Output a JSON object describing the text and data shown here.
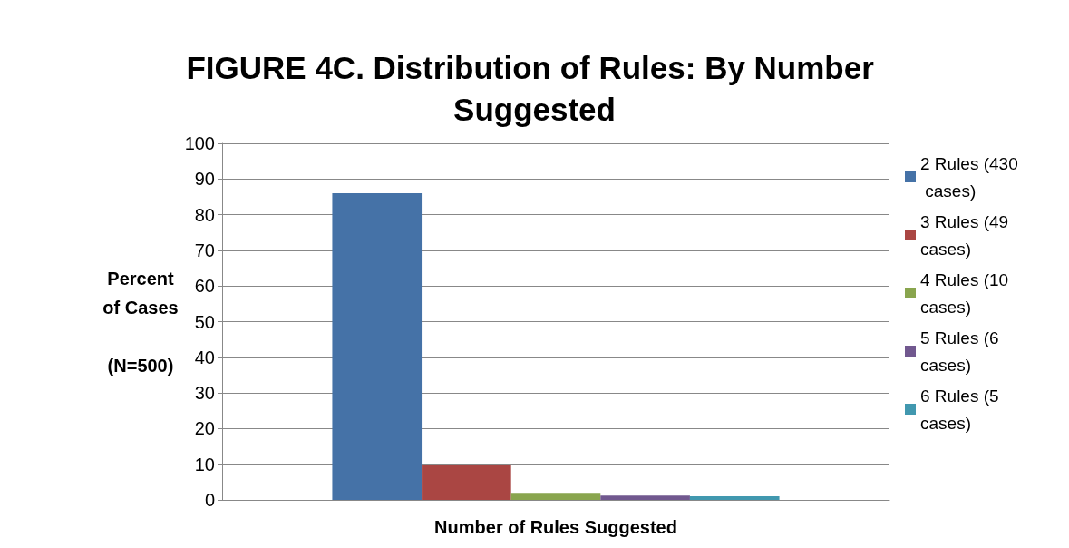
{
  "chart_data": {
    "type": "bar",
    "title": "FIGURE 4C. Distribution of Rules: By Number Suggested",
    "xlabel": "Number of Rules Suggested",
    "ylabel": "Percent\nof Cases\n\n(N=500)",
    "categories": [
      null
    ],
    "series": [
      {
        "name": "2 Rules (430 cases)",
        "color": "#4572a7",
        "values": [
          86
        ]
      },
      {
        "name": "3 Rules (49 cases)",
        "color": "#aa4643",
        "values": [
          9.8
        ]
      },
      {
        "name": "4 Rules (10 cases)",
        "color": "#89a54e",
        "values": [
          2
        ]
      },
      {
        "name": "5 Rules (6 cases)",
        "color": "#71588f",
        "values": [
          1.2
        ]
      },
      {
        "name": "6 Rules (5 cases)",
        "color": "#4198af",
        "values": [
          1
        ]
      }
    ],
    "ylim": [
      0,
      100
    ],
    "yticks": [
      0,
      10,
      20,
      30,
      40,
      50,
      60,
      70,
      80,
      90,
      100
    ],
    "grid": "y",
    "legend": "right"
  }
}
